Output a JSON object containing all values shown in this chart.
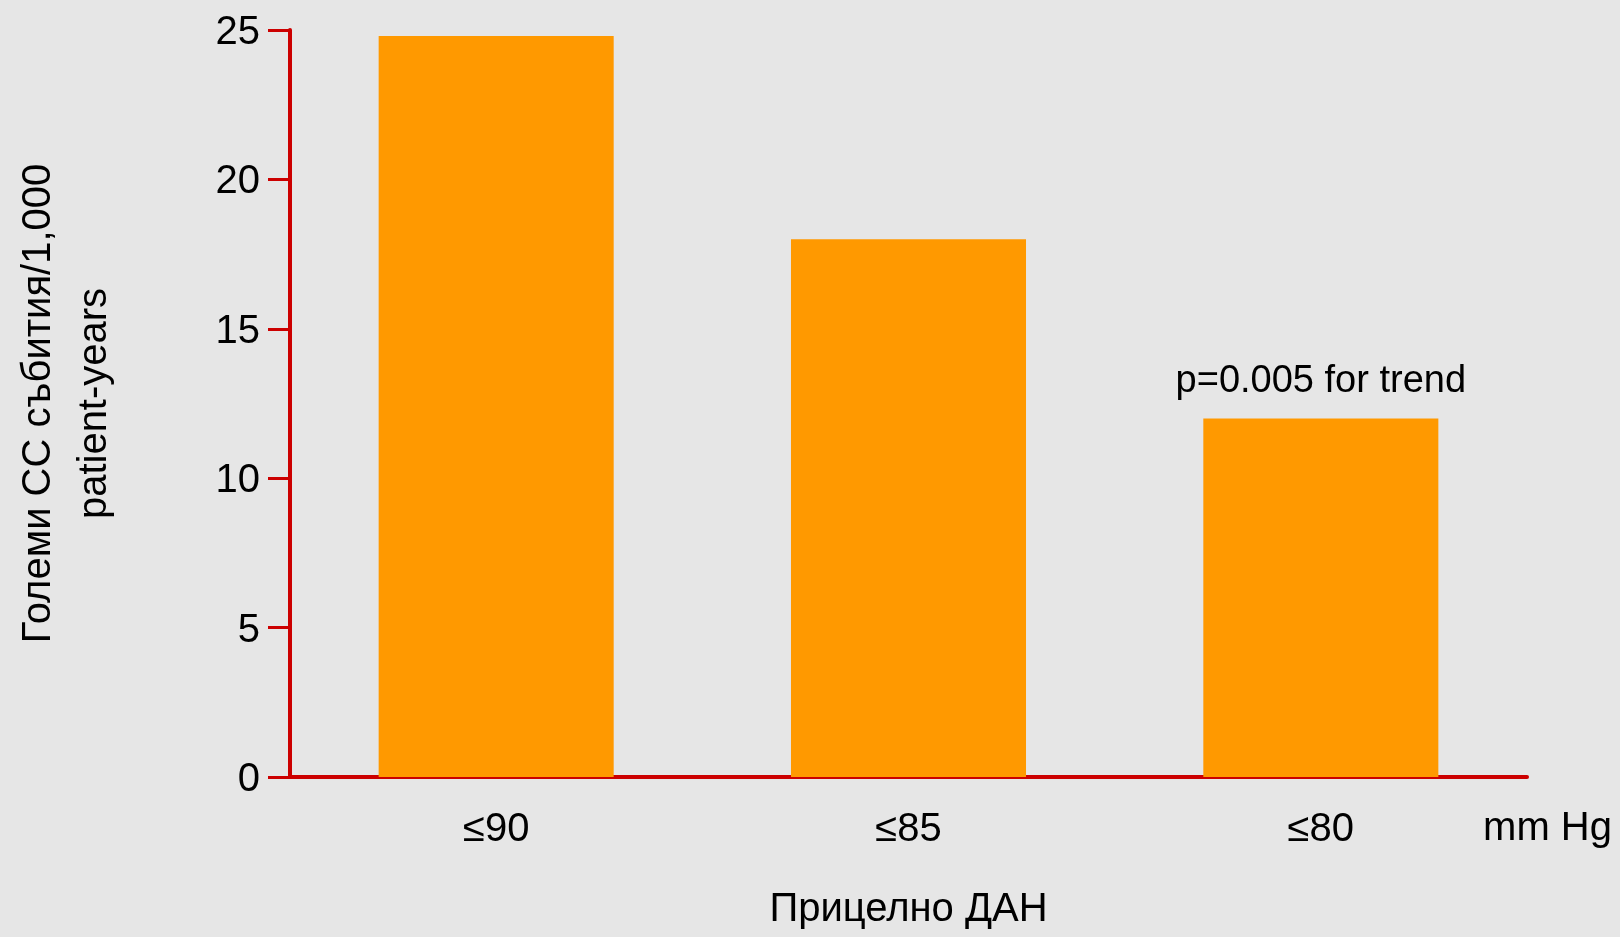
{
  "chart_data": {
    "type": "bar",
    "xlabel": "Прицелно ДАН",
    "ylabel": "Големи СС събития/1,000\npatient-years",
    "categories": [
      "≤90",
      "≤85",
      "≤80"
    ],
    "values": [
      24.8,
      18,
      12
    ],
    "color": "#ff9900",
    "ylim": [
      0,
      25
    ],
    "yticks": [
      0,
      5,
      10,
      15,
      20,
      25
    ],
    "grid": false,
    "annotations": [
      {
        "text": "p=0.005 for trend",
        "x": "≤80",
        "y": 12
      },
      "mm Hg"
    ]
  }
}
